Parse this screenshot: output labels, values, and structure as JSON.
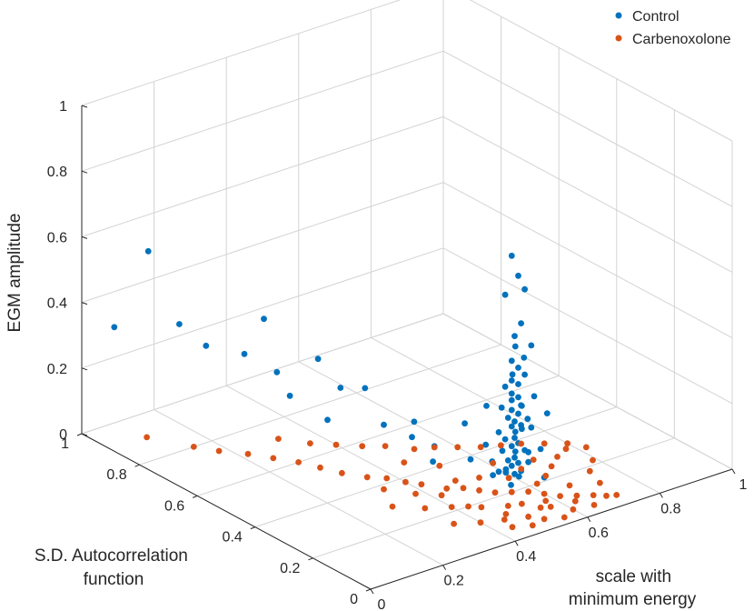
{
  "chart_data": {
    "type": "scatter",
    "view": "3d",
    "zlabel": "EGM amplitude",
    "ylabel_lines": [
      "S.D. Autocorrelation",
      "function"
    ],
    "xlabel_lines": [
      "scale with",
      "minimum energy"
    ],
    "xlim": [
      0,
      1
    ],
    "ylim": [
      0,
      1
    ],
    "zlim": [
      0,
      1
    ],
    "xticks": [
      "0",
      "0.2",
      "0.4",
      "0.6",
      "0.8",
      "1"
    ],
    "yticks": [
      "0",
      "0.2",
      "0.4",
      "0.6",
      "0.8",
      "1"
    ],
    "zticks": [
      "0",
      "0.2",
      "0.4",
      "0.6",
      "0.8",
      "1"
    ],
    "grid": true,
    "legend_position": "top-right",
    "series": [
      {
        "name": "Control",
        "color": "#0072BD",
        "points": [
          [
            0.05,
            0.95,
            0.33
          ],
          [
            0.12,
            0.92,
            0.55
          ],
          [
            0.15,
            0.85,
            0.35
          ],
          [
            0.2,
            0.82,
            0.28
          ],
          [
            0.25,
            0.75,
            0.27
          ],
          [
            0.3,
            0.7,
            0.22
          ],
          [
            0.28,
            0.72,
            0.38
          ],
          [
            0.35,
            0.62,
            0.28
          ],
          [
            0.38,
            0.58,
            0.2
          ],
          [
            0.4,
            0.52,
            0.22
          ],
          [
            0.32,
            0.68,
            0.15
          ],
          [
            0.42,
            0.48,
            0.12
          ],
          [
            0.45,
            0.42,
            0.1
          ],
          [
            0.48,
            0.38,
            0.08
          ],
          [
            0.5,
            0.3,
            0.18
          ],
          [
            0.52,
            0.25,
            0.25
          ],
          [
            0.5,
            0.28,
            0.08
          ],
          [
            0.46,
            0.36,
            0.05
          ],
          [
            0.44,
            0.4,
            0.16
          ],
          [
            0.36,
            0.6,
            0.1
          ],
          [
            0.6,
            0.15,
            0.05
          ],
          [
            0.58,
            0.18,
            0.12
          ],
          [
            0.55,
            0.22,
            0.06
          ],
          [
            0.53,
            0.24,
            0.04
          ],
          [
            0.55,
            0.2,
            0.72
          ],
          [
            0.56,
            0.19,
            0.66
          ],
          [
            0.57,
            0.18,
            0.62
          ],
          [
            0.54,
            0.21,
            0.6
          ],
          [
            0.56,
            0.18,
            0.52
          ],
          [
            0.55,
            0.19,
            0.48
          ],
          [
            0.58,
            0.17,
            0.45
          ],
          [
            0.56,
            0.2,
            0.44
          ],
          [
            0.55,
            0.2,
            0.4
          ],
          [
            0.56,
            0.19,
            0.38
          ],
          [
            0.57,
            0.18,
            0.36
          ],
          [
            0.55,
            0.2,
            0.34
          ],
          [
            0.56,
            0.19,
            0.33
          ],
          [
            0.54,
            0.21,
            0.32
          ],
          [
            0.55,
            0.2,
            0.3
          ],
          [
            0.56,
            0.19,
            0.29
          ],
          [
            0.55,
            0.2,
            0.28
          ],
          [
            0.56,
            0.18,
            0.27
          ],
          [
            0.57,
            0.19,
            0.26
          ],
          [
            0.55,
            0.2,
            0.25
          ],
          [
            0.56,
            0.19,
            0.24
          ],
          [
            0.54,
            0.2,
            0.23
          ],
          [
            0.55,
            0.19,
            0.22
          ],
          [
            0.56,
            0.18,
            0.21
          ],
          [
            0.55,
            0.2,
            0.2
          ],
          [
            0.57,
            0.19,
            0.19
          ],
          [
            0.56,
            0.2,
            0.18
          ],
          [
            0.55,
            0.19,
            0.17
          ],
          [
            0.54,
            0.21,
            0.16
          ],
          [
            0.56,
            0.19,
            0.15
          ],
          [
            0.55,
            0.2,
            0.14
          ],
          [
            0.57,
            0.18,
            0.13
          ],
          [
            0.56,
            0.2,
            0.12
          ],
          [
            0.55,
            0.19,
            0.11
          ],
          [
            0.54,
            0.2,
            0.1
          ],
          [
            0.56,
            0.19,
            0.09
          ],
          [
            0.55,
            0.2,
            0.08
          ],
          [
            0.56,
            0.18,
            0.07
          ],
          [
            0.55,
            0.19,
            0.06
          ],
          [
            0.53,
            0.22,
            0.06
          ],
          [
            0.58,
            0.17,
            0.2
          ],
          [
            0.58,
            0.16,
            0.3
          ],
          [
            0.53,
            0.22,
            0.18
          ],
          [
            0.53,
            0.21,
            0.26
          ],
          [
            0.57,
            0.17,
            0.23
          ],
          [
            0.54,
            0.22,
            0.12
          ],
          [
            0.58,
            0.18,
            0.09
          ],
          [
            0.52,
            0.23,
            0.09
          ],
          [
            0.59,
            0.15,
            0.14
          ],
          [
            0.6,
            0.14,
            0.25
          ],
          [
            0.51,
            0.24,
            0.14
          ],
          [
            0.56,
            0.21,
            0.35
          ],
          [
            0.55,
            0.22,
            0.05
          ],
          [
            0.57,
            0.2,
            0.04
          ],
          [
            0.54,
            0.19,
            0.03
          ],
          [
            0.56,
            0.17,
            0.42
          ]
        ]
      },
      {
        "name": "Carbenoxolone",
        "color": "#D95319",
        "points": [
          [
            0.1,
            0.9,
            0.0
          ],
          [
            0.15,
            0.8,
            0.0
          ],
          [
            0.18,
            0.75,
            0.0
          ],
          [
            0.22,
            0.7,
            0.0
          ],
          [
            0.25,
            0.65,
            0.0
          ],
          [
            0.28,
            0.6,
            0.0
          ],
          [
            0.3,
            0.55,
            0.0
          ],
          [
            0.32,
            0.5,
            0.0
          ],
          [
            0.35,
            0.45,
            0.0
          ],
          [
            0.38,
            0.42,
            0.0
          ],
          [
            0.4,
            0.38,
            0.0
          ],
          [
            0.42,
            0.35,
            0.0
          ],
          [
            0.45,
            0.3,
            0.0
          ],
          [
            0.48,
            0.28,
            0.0
          ],
          [
            0.5,
            0.25,
            0.0
          ],
          [
            0.52,
            0.22,
            0.0
          ],
          [
            0.55,
            0.2,
            0.0
          ],
          [
            0.58,
            0.18,
            0.0
          ],
          [
            0.6,
            0.15,
            0.0
          ],
          [
            0.62,
            0.12,
            0.0
          ],
          [
            0.65,
            0.1,
            0.0
          ],
          [
            0.68,
            0.08,
            0.0
          ],
          [
            0.7,
            0.06,
            0.0
          ],
          [
            0.72,
            0.05,
            0.0
          ],
          [
            0.55,
            0.1,
            0.0
          ],
          [
            0.5,
            0.15,
            0.0
          ],
          [
            0.45,
            0.18,
            0.0
          ],
          [
            0.4,
            0.22,
            0.0
          ],
          [
            0.35,
            0.25,
            0.0
          ],
          [
            0.3,
            0.3,
            0.0
          ],
          [
            0.6,
            0.05,
            0.0
          ],
          [
            0.65,
            0.04,
            0.0
          ],
          [
            0.5,
            0.08,
            0.0
          ],
          [
            0.45,
            0.1,
            0.0
          ],
          [
            0.4,
            0.12,
            0.0
          ],
          [
            0.35,
            0.15,
            0.0
          ],
          [
            0.58,
            0.12,
            0.0
          ],
          [
            0.62,
            0.2,
            0.0
          ],
          [
            0.66,
            0.22,
            0.0
          ],
          [
            0.7,
            0.25,
            0.0
          ],
          [
            0.74,
            0.28,
            0.0
          ],
          [
            0.78,
            0.3,
            0.0
          ],
          [
            0.8,
            0.32,
            0.0
          ],
          [
            0.82,
            0.28,
            0.0
          ],
          [
            0.76,
            0.35,
            0.0
          ],
          [
            0.72,
            0.38,
            0.0
          ],
          [
            0.68,
            0.4,
            0.0
          ],
          [
            0.64,
            0.42,
            0.0
          ],
          [
            0.6,
            0.45,
            0.0
          ],
          [
            0.56,
            0.48,
            0.0
          ],
          [
            0.52,
            0.5,
            0.0
          ],
          [
            0.48,
            0.55,
            0.0
          ],
          [
            0.44,
            0.58,
            0.0
          ],
          [
            0.4,
            0.62,
            0.0
          ],
          [
            0.36,
            0.66,
            0.0
          ],
          [
            0.32,
            0.72,
            0.0
          ],
          [
            0.53,
            0.14,
            0.0
          ],
          [
            0.57,
            0.09,
            0.0
          ],
          [
            0.47,
            0.12,
            0.0
          ],
          [
            0.43,
            0.2,
            0.0
          ],
          [
            0.63,
            0.08,
            0.0
          ],
          [
            0.67,
            0.15,
            0.0
          ],
          [
            0.59,
            0.26,
            0.0
          ],
          [
            0.49,
            0.32,
            0.0
          ],
          [
            0.54,
            0.3,
            0.0
          ],
          [
            0.61,
            0.34,
            0.0
          ],
          [
            0.51,
            0.4,
            0.0
          ],
          [
            0.46,
            0.46,
            0.0
          ],
          [
            0.75,
            0.18,
            0.0
          ],
          [
            0.79,
            0.22,
            0.0
          ],
          [
            0.73,
            0.12,
            0.0
          ],
          [
            0.69,
            0.3,
            0.0
          ],
          [
            0.42,
            0.28,
            0.0
          ],
          [
            0.38,
            0.32,
            0.0
          ],
          [
            0.34,
            0.38,
            0.0
          ],
          [
            0.56,
            0.03,
            0.0
          ],
          [
            0.52,
            0.05,
            0.0
          ],
          [
            0.48,
            0.04,
            0.0
          ],
          [
            0.44,
            0.06,
            0.0
          ],
          [
            0.64,
            0.28,
            0.0
          ]
        ]
      }
    ]
  }
}
